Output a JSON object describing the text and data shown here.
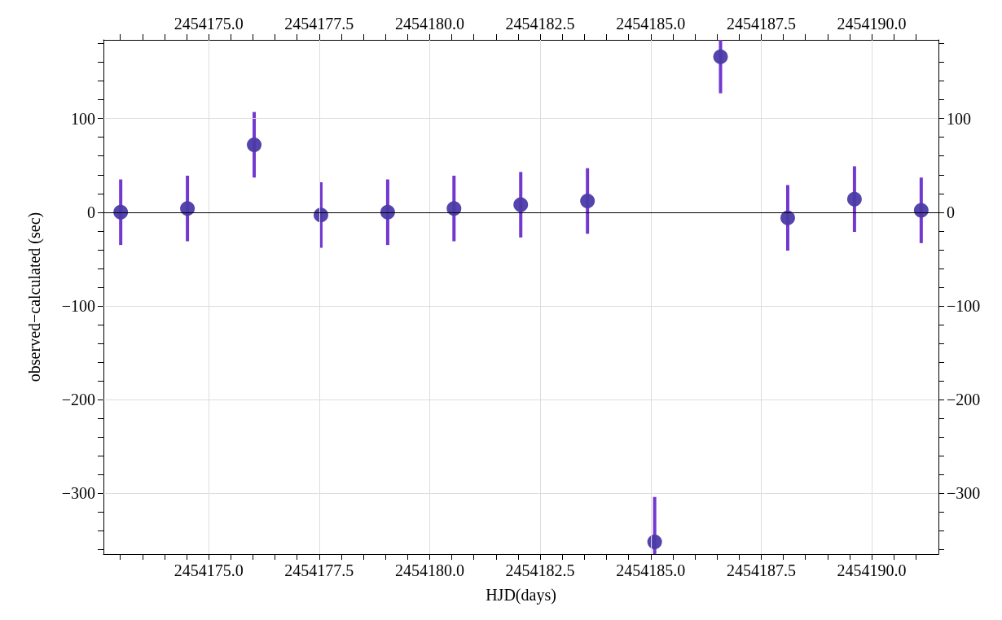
{
  "chart_data": {
    "type": "scatter",
    "xlabel": "HJD(days)",
    "ylabel": "observed−calculated (sec)",
    "x": [
      2454173.01,
      2454174.52,
      2454176.03,
      2454177.54,
      2454179.05,
      2454180.55,
      2454182.06,
      2454183.57,
      2454185.09,
      2454186.58,
      2454188.1,
      2454189.61,
      2454191.12
    ],
    "series": [
      {
        "color": "#4b3aa8",
        "values": [
          0,
          4,
          72,
          -3,
          0,
          4,
          8,
          12,
          -352,
          166,
          -6,
          14,
          2
        ],
        "errors": [
          35,
          35,
          35,
          35,
          35,
          35,
          35,
          35,
          [
            -365,
            -304
          ],
          [
            127,
            184
          ],
          35,
          35,
          35
        ]
      }
    ],
    "marker": "circle",
    "xlim": [
      2454172.62,
      2454191.51
    ],
    "xticks": [
      {
        "value": 2454173,
        "label": null
      },
      {
        "value": 2454173.5,
        "label": null
      },
      {
        "value": 2454174,
        "label": null
      },
      {
        "value": 2454174.5,
        "label": null
      },
      {
        "value": 2454175,
        "label": "2454175.0"
      },
      {
        "value": 2454175.5,
        "label": null
      },
      {
        "value": 2454176,
        "label": null
      },
      {
        "value": 2454176.5,
        "label": null
      },
      {
        "value": 2454177,
        "label": null
      },
      {
        "value": 2454177.5,
        "label": "2454177.5"
      },
      {
        "value": 2454178,
        "label": null
      },
      {
        "value": 2454178.5,
        "label": null
      },
      {
        "value": 2454179,
        "label": null
      },
      {
        "value": 2454179.5,
        "label": null
      },
      {
        "value": 2454180,
        "label": "2454180.0"
      },
      {
        "value": 2454180.5,
        "label": null
      },
      {
        "value": 2454181,
        "label": null
      },
      {
        "value": 2454181.5,
        "label": null
      },
      {
        "value": 2454182,
        "label": null
      },
      {
        "value": 2454182.5,
        "label": "2454182.5"
      },
      {
        "value": 2454183,
        "label": null
      },
      {
        "value": 2454183.5,
        "label": null
      },
      {
        "value": 2454184,
        "label": null
      },
      {
        "value": 2454184.5,
        "label": null
      },
      {
        "value": 2454185,
        "label": "2454185.0"
      },
      {
        "value": 2454185.5,
        "label": null
      },
      {
        "value": 2454186,
        "label": null
      },
      {
        "value": 2454186.5,
        "label": null
      },
      {
        "value": 2454187,
        "label": null
      },
      {
        "value": 2454187.5,
        "label": "2454187.5"
      },
      {
        "value": 2454188,
        "label": null
      },
      {
        "value": 2454188.5,
        "label": null
      },
      {
        "value": 2454189,
        "label": null
      },
      {
        "value": 2454189.5,
        "label": null
      },
      {
        "value": 2454190,
        "label": "2454190.0"
      },
      {
        "value": 2454190.5,
        "label": null
      },
      {
        "value": 2454191,
        "label": null
      }
    ],
    "x2lim": [
      2454172.62,
      2454191.51
    ],
    "x2ticks": [
      {
        "value": 2454173,
        "label": null
      },
      {
        "value": 2454173.5,
        "label": null
      },
      {
        "value": 2454174,
        "label": null
      },
      {
        "value": 2454174.5,
        "label": null
      },
      {
        "value": 2454175,
        "label": "2454175.0"
      },
      {
        "value": 2454175.5,
        "label": null
      },
      {
        "value": 2454176,
        "label": null
      },
      {
        "value": 2454176.5,
        "label": null
      },
      {
        "value": 2454177,
        "label": null
      },
      {
        "value": 2454177.5,
        "label": "2454177.5"
      },
      {
        "value": 2454178,
        "label": null
      },
      {
        "value": 2454178.5,
        "label": null
      },
      {
        "value": 2454179,
        "label": null
      },
      {
        "value": 2454179.5,
        "label": null
      },
      {
        "value": 2454180,
        "label": "2454180.0"
      },
      {
        "value": 2454180.5,
        "label": null
      },
      {
        "value": 2454181,
        "label": null
      },
      {
        "value": 2454181.5,
        "label": null
      },
      {
        "value": 2454182,
        "label": null
      },
      {
        "value": 2454182.5,
        "label": "2454182.5"
      },
      {
        "value": 2454183,
        "label": null
      },
      {
        "value": 2454183.5,
        "label": null
      },
      {
        "value": 2454184,
        "label": null
      },
      {
        "value": 2454184.5,
        "label": null
      },
      {
        "value": 2454185,
        "label": "2454185.0"
      },
      {
        "value": 2454185.5,
        "label": null
      },
      {
        "value": 2454186,
        "label": null
      },
      {
        "value": 2454186.5,
        "label": null
      },
      {
        "value": 2454187,
        "label": null
      },
      {
        "value": 2454187.5,
        "label": "2454187.5"
      },
      {
        "value": 2454188,
        "label": null
      },
      {
        "value": 2454188.5,
        "label": null
      },
      {
        "value": 2454189,
        "label": null
      },
      {
        "value": 2454189.5,
        "label": null
      },
      {
        "value": 2454190,
        "label": "2454190.0"
      },
      {
        "value": 2454190.5,
        "label": null
      },
      {
        "value": 2454191,
        "label": null
      }
    ],
    "ylim": [
      -365,
      184
    ],
    "yticks": [
      {
        "value": -360,
        "label": null
      },
      {
        "value": -340,
        "label": null
      },
      {
        "value": -320,
        "label": null
      },
      {
        "value": -300,
        "label": "−300"
      },
      {
        "value": -280,
        "label": null
      },
      {
        "value": -260,
        "label": null
      },
      {
        "value": -240,
        "label": null
      },
      {
        "value": -220,
        "label": null
      },
      {
        "value": -200,
        "label": "−200"
      },
      {
        "value": -180,
        "label": null
      },
      {
        "value": -160,
        "label": null
      },
      {
        "value": -140,
        "label": null
      },
      {
        "value": -120,
        "label": null
      },
      {
        "value": -100,
        "label": "−100"
      },
      {
        "value": -80,
        "label": null
      },
      {
        "value": -60,
        "label": null
      },
      {
        "value": -40,
        "label": null
      },
      {
        "value": -20,
        "label": null
      },
      {
        "value": 0,
        "label": "0"
      },
      {
        "value": 20,
        "label": null
      },
      {
        "value": 40,
        "label": null
      },
      {
        "value": 60,
        "label": null
      },
      {
        "value": 80,
        "label": null
      },
      {
        "value": 100,
        "label": "100"
      },
      {
        "value": 120,
        "label": null
      },
      {
        "value": 140,
        "label": null
      },
      {
        "value": 160,
        "label": null
      },
      {
        "value": 180,
        "label": null
      }
    ],
    "y2lim": [
      -365,
      184
    ],
    "y2ticks": [
      {
        "value": -360,
        "label": null
      },
      {
        "value": -340,
        "label": null
      },
      {
        "value": -320,
        "label": null
      },
      {
        "value": -300,
        "label": "−300"
      },
      {
        "value": -280,
        "label": null
      },
      {
        "value": -260,
        "label": null
      },
      {
        "value": -240,
        "label": null
      },
      {
        "value": -220,
        "label": null
      },
      {
        "value": -200,
        "label": "−200"
      },
      {
        "value": -180,
        "label": null
      },
      {
        "value": -160,
        "label": null
      },
      {
        "value": -140,
        "label": null
      },
      {
        "value": -120,
        "label": null
      },
      {
        "value": -100,
        "label": "−100"
      },
      {
        "value": -80,
        "label": null
      },
      {
        "value": -60,
        "label": null
      },
      {
        "value": -40,
        "label": null
      },
      {
        "value": -20,
        "label": null
      },
      {
        "value": 0,
        "label": "0"
      },
      {
        "value": 20,
        "label": null
      },
      {
        "value": 40,
        "label": null
      },
      {
        "value": 60,
        "label": null
      },
      {
        "value": 80,
        "label": null
      },
      {
        "value": 100,
        "label": "100"
      },
      {
        "value": 120,
        "label": null
      },
      {
        "value": 140,
        "label": null
      },
      {
        "value": 160,
        "label": null
      },
      {
        "value": 180,
        "label": null
      }
    ],
    "grid": true,
    "ref_lines": [
      {
        "axis": "y",
        "value": 0,
        "color": "#000000"
      }
    ]
  }
}
